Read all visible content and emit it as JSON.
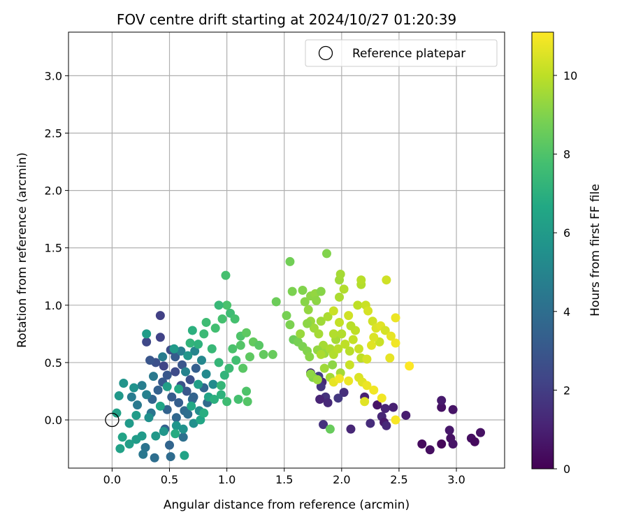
{
  "chart_data": {
    "type": "scatter",
    "title": "FOV centre drift starting at 2024/10/27 01:20:39",
    "xlabel": "Angular distance from reference (arcmin)",
    "ylabel": "Rotation from reference (arcmin)",
    "xlim": [
      -0.38,
      3.42
    ],
    "ylim": [
      -0.42,
      3.38
    ],
    "xticks": [
      "0.0",
      "0.5",
      "1.0",
      "1.5",
      "2.0",
      "2.5",
      "3.0"
    ],
    "yticks": [
      "0.0",
      "0.5",
      "1.0",
      "1.5",
      "2.0",
      "2.5",
      "3.0"
    ],
    "grid": true,
    "legend": {
      "placement": "top-right",
      "label": "Reference platepar"
    },
    "reference_point": {
      "x": 0.0,
      "y": 0.0
    },
    "colorbar": {
      "label": "Hours from first FF file",
      "colormap": "viridis",
      "range": [
        0,
        11.1
      ],
      "ticks": [
        "0",
        "2",
        "4",
        "6",
        "8",
        "10"
      ]
    },
    "points": [
      [
        2.7,
        -0.21,
        0.3
      ],
      [
        2.77,
        -0.26,
        0.4
      ],
      [
        2.87,
        -0.21,
        0.2
      ],
      [
        2.95,
        -0.16,
        0.5
      ],
      [
        2.97,
        -0.21,
        0.6
      ],
      [
        3.13,
        -0.16,
        0.4
      ],
      [
        3.16,
        -0.19,
        0.3
      ],
      [
        3.21,
        -0.11,
        0.5
      ],
      [
        2.94,
        -0.09,
        0.7
      ],
      [
        2.87,
        0.11,
        0.5
      ],
      [
        2.97,
        0.09,
        0.6
      ],
      [
        2.87,
        0.17,
        0.8
      ],
      [
        2.56,
        0.04,
        0.9
      ],
      [
        2.45,
        0.11,
        1.0
      ],
      [
        2.38,
        0.1,
        1.1
      ],
      [
        2.31,
        0.13,
        0.6
      ],
      [
        2.35,
        0.03,
        1.2
      ],
      [
        2.37,
        -0.02,
        0.8
      ],
      [
        2.39,
        -0.05,
        1.3
      ],
      [
        2.25,
        -0.03,
        1.4
      ],
      [
        2.2,
        0.2,
        1.0
      ],
      [
        2.02,
        0.24,
        1.5
      ],
      [
        1.97,
        0.19,
        1.8
      ],
      [
        1.86,
        0.2,
        1.6
      ],
      [
        1.83,
        0.33,
        1.2
      ],
      [
        1.8,
        0.38,
        2.0
      ],
      [
        1.73,
        0.41,
        1.4
      ],
      [
        1.82,
        0.29,
        1.7
      ],
      [
        1.81,
        0.18,
        1.1
      ],
      [
        1.88,
        0.15,
        1.3
      ],
      [
        1.84,
        -0.04,
        1.6
      ],
      [
        2.08,
        -0.08,
        1.2
      ],
      [
        0.42,
        0.91,
        2.1
      ],
      [
        0.3,
        0.68,
        2.4
      ],
      [
        0.42,
        0.72,
        2.2
      ],
      [
        0.51,
        0.61,
        2.6
      ],
      [
        0.45,
        0.47,
        2.3
      ],
      [
        0.38,
        0.5,
        2.7
      ],
      [
        0.33,
        0.52,
        2.9
      ],
      [
        0.48,
        0.39,
        3.0
      ],
      [
        0.55,
        0.42,
        2.5
      ],
      [
        0.6,
        0.3,
        2.8
      ],
      [
        0.44,
        0.33,
        3.1
      ],
      [
        0.52,
        0.2,
        3.2
      ],
      [
        0.65,
        0.25,
        3.0
      ],
      [
        0.58,
        0.15,
        3.3
      ],
      [
        0.4,
        0.26,
        3.4
      ],
      [
        0.35,
        0.18,
        3.6
      ],
      [
        0.48,
        0.09,
        3.5
      ],
      [
        0.56,
        0.02,
        3.7
      ],
      [
        0.63,
        0.08,
        3.8
      ],
      [
        0.7,
        0.18,
        3.9
      ],
      [
        0.46,
        -0.08,
        3.4
      ],
      [
        0.5,
        -0.22,
        3.6
      ],
      [
        0.51,
        -0.32,
        3.9
      ],
      [
        0.37,
        -0.33,
        4.0
      ],
      [
        0.29,
        -0.24,
        4.2
      ],
      [
        0.27,
        -0.3,
        4.4
      ],
      [
        0.62,
        -0.15,
        4.1
      ],
      [
        0.68,
        0.35,
        2.7
      ],
      [
        0.61,
        0.48,
        2.9
      ],
      [
        0.55,
        0.55,
        3.2
      ],
      [
        0.73,
        0.45,
        3.3
      ],
      [
        0.71,
        0.2,
        3.5
      ],
      [
        0.8,
        0.28,
        3.6
      ],
      [
        0.83,
        0.15,
        3.8
      ],
      [
        0.66,
        0.05,
        4.0
      ],
      [
        0.34,
        0.06,
        4.3
      ],
      [
        0.22,
        0.13,
        4.5
      ],
      [
        0.17,
        0.2,
        4.6
      ],
      [
        0.26,
        0.3,
        4.7
      ],
      [
        0.3,
        0.22,
        4.8
      ],
      [
        0.36,
        0.38,
        4.5
      ],
      [
        0.44,
        0.55,
        4.6
      ],
      [
        0.6,
        0.6,
        4.7
      ],
      [
        0.64,
        0.42,
        4.9
      ],
      [
        0.72,
        0.6,
        5.0
      ],
      [
        0.78,
        0.52,
        5.1
      ],
      [
        0.82,
        0.4,
        5.2
      ],
      [
        0.88,
        0.31,
        5.3
      ],
      [
        0.76,
        0.08,
        5.4
      ],
      [
        0.71,
        -0.03,
        5.5
      ],
      [
        0.62,
        -0.08,
        5.6
      ],
      [
        0.56,
        -0.05,
        5.7
      ],
      [
        0.45,
        -0.1,
        5.8
      ],
      [
        0.38,
        -0.14,
        5.9
      ],
      [
        0.26,
        -0.14,
        6.0
      ],
      [
        0.21,
        -0.17,
        6.1
      ],
      [
        0.15,
        -0.21,
        6.2
      ],
      [
        0.07,
        -0.25,
        6.3
      ],
      [
        0.09,
        -0.15,
        6.4
      ],
      [
        0.15,
        -0.03,
        6.0
      ],
      [
        0.21,
        0.04,
        6.1
      ],
      [
        0.19,
        0.28,
        5.6
      ],
      [
        0.1,
        0.32,
        5.7
      ],
      [
        0.06,
        0.21,
        5.9
      ],
      [
        0.04,
        0.06,
        6.3
      ],
      [
        0.32,
        0.02,
        5.5
      ],
      [
        0.3,
        0.75,
        6.1
      ],
      [
        0.54,
        0.62,
        6.0
      ],
      [
        0.66,
        0.56,
        5.8
      ],
      [
        0.75,
        0.31,
        6.2
      ],
      [
        0.84,
        0.2,
        6.4
      ],
      [
        0.77,
        0.0,
        6.5
      ],
      [
        0.69,
        0.12,
        6.6
      ],
      [
        0.58,
        0.27,
        6.7
      ],
      [
        0.48,
        0.29,
        6.2
      ],
      [
        0.42,
        0.12,
        6.5
      ],
      [
        0.55,
        -0.12,
        6.8
      ],
      [
        0.63,
        -0.31,
        6.4
      ],
      [
        0.8,
        0.06,
        6.9
      ],
      [
        0.89,
        0.18,
        7.0
      ],
      [
        0.95,
        0.22,
        7.1
      ],
      [
        0.98,
        0.39,
        7.2
      ],
      [
        0.93,
        0.5,
        7.3
      ],
      [
        0.87,
        0.62,
        7.4
      ],
      [
        0.8,
        0.75,
        7.5
      ],
      [
        0.7,
        0.78,
        7.0
      ],
      [
        0.68,
        0.67,
        7.2
      ],
      [
        0.75,
        0.66,
        7.1
      ],
      [
        0.82,
        0.85,
        7.6
      ],
      [
        0.9,
        0.8,
        7.7
      ],
      [
        0.96,
        0.88,
        7.8
      ],
      [
        1.0,
        1.0,
        7.9
      ],
      [
        0.93,
        1.0,
        7.4
      ],
      [
        1.03,
        0.93,
        7.6
      ],
      [
        1.07,
        0.88,
        7.8
      ],
      [
        1.12,
        0.73,
        8.0
      ],
      [
        1.05,
        0.62,
        7.9
      ],
      [
        1.08,
        0.52,
        7.7
      ],
      [
        1.02,
        0.45,
        7.5
      ],
      [
        0.95,
        0.3,
        7.3
      ],
      [
        1.0,
        0.16,
        7.6
      ],
      [
        1.1,
        0.18,
        7.8
      ],
      [
        1.18,
        0.16,
        8.1
      ],
      [
        1.17,
        0.25,
        8.0
      ],
      [
        1.14,
        0.45,
        8.2
      ],
      [
        1.2,
        0.55,
        8.3
      ],
      [
        1.23,
        0.68,
        8.4
      ],
      [
        1.28,
        0.65,
        8.2
      ],
      [
        1.32,
        0.57,
        8.4
      ],
      [
        1.4,
        0.57,
        8.5
      ],
      [
        1.17,
        0.76,
        8.3
      ],
      [
        1.12,
        0.65,
        8.1
      ],
      [
        0.99,
        1.26,
        7.8
      ],
      [
        1.43,
        1.03,
        8.6
      ],
      [
        1.55,
        1.38,
        8.7
      ],
      [
        1.52,
        0.91,
        8.8
      ],
      [
        1.55,
        0.83,
        8.9
      ],
      [
        1.58,
        0.7,
        8.6
      ],
      [
        1.62,
        0.68,
        8.8
      ],
      [
        1.66,
        0.64,
        8.9
      ],
      [
        1.7,
        0.6,
        9.0
      ],
      [
        1.72,
        0.55,
        9.1
      ],
      [
        1.57,
        1.12,
        8.9
      ],
      [
        1.66,
        1.13,
        9.0
      ],
      [
        1.68,
        1.03,
        9.1
      ],
      [
        1.73,
        1.08,
        9.2
      ],
      [
        1.77,
        1.1,
        9.3
      ],
      [
        1.82,
        1.12,
        9.1
      ],
      [
        1.87,
        1.45,
        9.0
      ],
      [
        1.78,
        1.04,
        9.2
      ],
      [
        1.71,
        0.96,
        9.3
      ],
      [
        1.73,
        0.86,
        9.4
      ],
      [
        1.76,
        0.8,
        9.5
      ],
      [
        1.7,
        0.84,
        9.2
      ],
      [
        1.64,
        0.75,
        9.4
      ],
      [
        1.8,
        0.75,
        9.6
      ],
      [
        1.82,
        0.86,
        9.5
      ],
      [
        1.88,
        0.9,
        9.7
      ],
      [
        1.84,
        0.65,
        9.6
      ],
      [
        1.79,
        0.61,
        9.3
      ],
      [
        1.85,
        0.58,
        9.4
      ],
      [
        1.9,
        0.62,
        9.7
      ],
      [
        1.93,
        0.57,
        9.8
      ],
      [
        1.97,
        0.62,
        9.9
      ],
      [
        1.95,
        0.7,
        9.6
      ],
      [
        2.0,
        0.75,
        9.8
      ],
      [
        2.03,
        0.66,
        10.0
      ],
      [
        2.07,
        0.6,
        9.9
      ],
      [
        2.1,
        0.7,
        10.1
      ],
      [
        2.15,
        0.62,
        10.2
      ],
      [
        2.12,
        0.78,
        10.0
      ],
      [
        2.08,
        0.82,
        9.9
      ],
      [
        1.98,
        0.85,
        10.1
      ],
      [
        1.93,
        0.95,
        10.2
      ],
      [
        1.98,
        1.07,
        9.7
      ],
      [
        2.02,
        1.14,
        9.8
      ],
      [
        1.98,
        1.22,
        9.5
      ],
      [
        1.99,
        1.27,
        9.6
      ],
      [
        2.06,
        0.91,
        10.3
      ],
      [
        2.14,
        1.0,
        10.0
      ],
      [
        2.17,
        1.18,
        9.8
      ],
      [
        2.17,
        1.22,
        9.9
      ],
      [
        2.21,
        1.0,
        10.2
      ],
      [
        2.23,
        0.95,
        10.4
      ],
      [
        2.27,
        0.86,
        10.3
      ],
      [
        2.3,
        0.8,
        10.5
      ],
      [
        2.34,
        0.82,
        10.6
      ],
      [
        2.38,
        0.78,
        10.4
      ],
      [
        2.39,
        1.22,
        10.3
      ],
      [
        2.33,
        0.68,
        10.2
      ],
      [
        2.28,
        0.72,
        10.5
      ],
      [
        2.17,
        0.54,
        10.0
      ],
      [
        2.26,
        0.65,
        10.6
      ],
      [
        2.22,
        0.53,
        10.4
      ],
      [
        2.07,
        0.48,
        10.2
      ],
      [
        1.99,
        0.41,
        9.6
      ],
      [
        1.92,
        0.48,
        9.2
      ],
      [
        1.85,
        0.45,
        9.5
      ],
      [
        1.82,
        0.57,
        9.7
      ],
      [
        1.75,
        0.37,
        9.0
      ],
      [
        1.73,
        0.4,
        9.2
      ],
      [
        1.79,
        0.35,
        9.4
      ],
      [
        1.9,
        0.37,
        9.6
      ],
      [
        1.93,
        0.33,
        10.7
      ],
      [
        1.98,
        0.36,
        10.9
      ],
      [
        2.06,
        0.34,
        10.8
      ],
      [
        2.15,
        0.37,
        10.5
      ],
      [
        2.18,
        0.33,
        10.6
      ],
      [
        2.22,
        0.3,
        10.8
      ],
      [
        2.28,
        0.26,
        10.9
      ],
      [
        2.2,
        0.16,
        10.6
      ],
      [
        2.35,
        0.19,
        10.9
      ],
      [
        2.42,
        0.54,
        10.7
      ],
      [
        2.47,
        0.89,
        10.8
      ],
      [
        2.47,
        0.0,
        11.0
      ],
      [
        2.59,
        0.47,
        11.1
      ],
      [
        2.47,
        0.67,
        10.9
      ],
      [
        2.43,
        0.73,
        10.7
      ],
      [
        1.9,
        -0.08,
        8.5
      ],
      [
        1.93,
        0.75,
        9.8
      ]
    ]
  }
}
